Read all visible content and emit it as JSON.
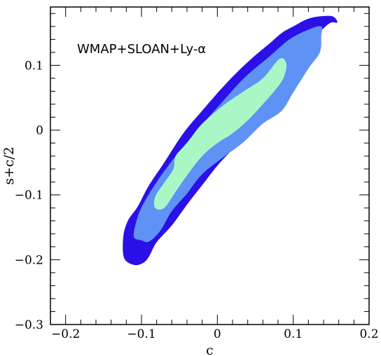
{
  "chart_data": {
    "type": "contour",
    "title": "",
    "xlabel": "c",
    "ylabel": "s+c/2",
    "xlim": [
      -0.22,
      0.2
    ],
    "ylim": [
      -0.3,
      0.19
    ],
    "x_ticks": [
      -0.2,
      -0.1,
      0,
      0.1,
      0.2
    ],
    "x_tick_labels": [
      "−0.2",
      "−0.1",
      "0",
      "0.1",
      "0.2"
    ],
    "y_ticks": [
      -0.3,
      -0.2,
      -0.1,
      0,
      0.1
    ],
    "y_tick_labels": [
      "−0.3",
      "−0.2",
      "−0.1",
      "0",
      "0.1"
    ],
    "grid": false,
    "annotation": "WMAP+SLOAN+Ly-α",
    "colors": {
      "outer": "#2b10e8",
      "middle": "#5e92f5",
      "inner": "#aaf7c6"
    },
    "regions": [
      {
        "level": "outer",
        "points": [
          [
            -0.124,
            -0.165
          ],
          [
            -0.123,
            -0.197
          ],
          [
            -0.11,
            -0.208
          ],
          [
            -0.098,
            -0.205
          ],
          [
            -0.09,
            -0.195
          ],
          [
            -0.08,
            -0.173
          ],
          [
            -0.06,
            -0.147
          ],
          [
            -0.04,
            -0.115
          ],
          [
            -0.02,
            -0.085
          ],
          [
            0,
            -0.055
          ],
          [
            0.02,
            -0.03
          ],
          [
            0.05,
            0.005
          ],
          [
            0.08,
            0.045
          ],
          [
            0.1,
            0.085
          ],
          [
            0.115,
            0.12
          ],
          [
            0.13,
            0.145
          ],
          [
            0.148,
            0.165
          ],
          [
            0.158,
            0.166
          ],
          [
            0.153,
            0.175
          ],
          [
            0.14,
            0.176
          ],
          [
            0.12,
            0.172
          ],
          [
            0.1,
            0.16
          ],
          [
            0.085,
            0.15
          ],
          [
            0.07,
            0.135
          ],
          [
            0.04,
            0.105
          ],
          [
            0.01,
            0.07
          ],
          [
            -0.02,
            0.03
          ],
          [
            -0.045,
            -0.005
          ],
          [
            -0.07,
            -0.05
          ],
          [
            -0.09,
            -0.085
          ],
          [
            -0.105,
            -0.118
          ],
          [
            -0.118,
            -0.14
          ],
          [
            -0.124,
            -0.165
          ]
        ]
      },
      {
        "level": "middle",
        "points": [
          [
            -0.1,
            -0.17
          ],
          [
            -0.11,
            -0.165
          ],
          [
            -0.107,
            -0.142
          ],
          [
            -0.099,
            -0.117
          ],
          [
            -0.08,
            -0.08
          ],
          [
            -0.055,
            -0.04
          ],
          [
            -0.03,
            -0.005
          ],
          [
            0,
            0.035
          ],
          [
            0.035,
            0.08
          ],
          [
            0.07,
            0.115
          ],
          [
            0.095,
            0.14
          ],
          [
            0.12,
            0.155
          ],
          [
            0.137,
            0.16
          ],
          [
            0.137,
            0.145
          ],
          [
            0.135,
            0.12
          ],
          [
            0.12,
            0.095
          ],
          [
            0.1,
            0.058
          ],
          [
            0.085,
            0.03
          ],
          [
            0.06,
            0.01
          ],
          [
            0.035,
            -0.018
          ],
          [
            0.01,
            -0.04
          ],
          [
            -0.02,
            -0.068
          ],
          [
            -0.04,
            -0.098
          ],
          [
            -0.06,
            -0.125
          ],
          [
            -0.075,
            -0.155
          ],
          [
            -0.09,
            -0.172
          ],
          [
            -0.1,
            -0.17
          ]
        ]
      },
      {
        "level": "inner",
        "points": [
          [
            -0.082,
            -0.12
          ],
          [
            -0.082,
            -0.103
          ],
          [
            -0.071,
            -0.083
          ],
          [
            -0.058,
            -0.06
          ],
          [
            -0.055,
            -0.04
          ],
          [
            -0.04,
            -0.02
          ],
          [
            -0.02,
            0.01
          ],
          [
            0.01,
            0.04
          ],
          [
            0.035,
            0.06
          ],
          [
            0.06,
            0.08
          ],
          [
            0.082,
            0.11
          ],
          [
            0.091,
            0.102
          ],
          [
            0.087,
            0.08
          ],
          [
            0.075,
            0.06
          ],
          [
            0.06,
            0.04
          ],
          [
            0.04,
            0.015
          ],
          [
            0.02,
            -0.005
          ],
          [
            0.0,
            -0.02
          ],
          [
            -0.02,
            -0.04
          ],
          [
            -0.04,
            -0.07
          ],
          [
            -0.055,
            -0.095
          ],
          [
            -0.07,
            -0.12
          ],
          [
            -0.082,
            -0.12
          ]
        ]
      }
    ]
  }
}
